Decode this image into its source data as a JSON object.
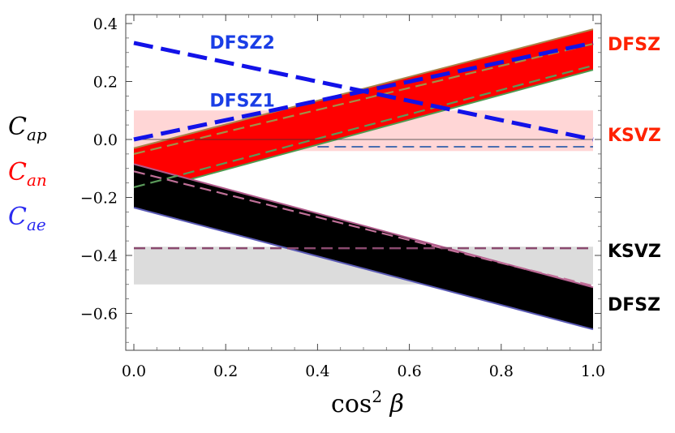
{
  "chart_data": {
    "type": "line",
    "xlabel_base": "cos",
    "xlabel_power": "2",
    "xlabel_symbol": "β",
    "xlim": [
      0,
      1
    ],
    "ylim": [
      -0.72,
      0.43
    ],
    "x_ticks": [
      0,
      0.2,
      0.4,
      0.6,
      0.8,
      1.0
    ],
    "x_tick_labels": [
      "0.0",
      "0.2",
      "0.4",
      "0.6",
      "0.8",
      "1.0"
    ],
    "y_ticks": [
      0.4,
      0.2,
      0.0,
      -0.2,
      -0.4,
      -0.6
    ],
    "y_tick_labels": [
      "0.4",
      "0.2",
      "0.0",
      "−0.2",
      "−0.4",
      "−0.6"
    ],
    "y_labels": [
      {
        "main": "C",
        "sub": "ap",
        "color": "#000000"
      },
      {
        "main": "C",
        "sub": "an",
        "color": "#ff0000"
      },
      {
        "main": "C",
        "sub": "ae",
        "color": "#2a2af0"
      }
    ],
    "bands": [
      {
        "name": "KSVZ Can band",
        "y_low": -0.04,
        "y_high": 0.1,
        "fill": "#ffd6d6"
      },
      {
        "name": "KSVZ Cap band",
        "y_low": -0.5,
        "y_high": -0.37,
        "fill": "#dcdcdc"
      }
    ],
    "regions": [
      {
        "name": "DFSZ Can",
        "fill": "#ff0000",
        "upper": [
          [
            0,
            -0.03
          ],
          [
            1,
            0.38
          ]
        ],
        "lower": [
          [
            0,
            -0.19
          ],
          [
            1,
            0.24
          ]
        ],
        "upper_edge_color": "#a8864a",
        "lower_edge_color": "#4f9a4f"
      },
      {
        "name": "DFSZ Cap",
        "fill": "#000000",
        "upper": [
          [
            0,
            -0.085
          ],
          [
            1,
            -0.51
          ]
        ],
        "lower": [
          [
            0,
            -0.235
          ],
          [
            1,
            -0.655
          ]
        ],
        "upper_edge_color": "#b05a8a",
        "lower_edge_color": "#5a5ab4"
      }
    ],
    "series": [
      {
        "name": "Can dashed (olive)",
        "style": "dashed",
        "color": "#a09048",
        "width": 2.2,
        "x": [
          0,
          1
        ],
        "y": [
          -0.05,
          0.33
        ]
      },
      {
        "name": "Can dashed (green)",
        "style": "dashed",
        "color": "#5a9a5a",
        "width": 2.2,
        "x": [
          0,
          1
        ],
        "y": [
          -0.165,
          0.255
        ]
      },
      {
        "name": "Cap dashed (mauve)",
        "style": "dashed",
        "color": "#c07098",
        "width": 2.2,
        "x": [
          0,
          1
        ],
        "y": [
          -0.11,
          -0.505
        ]
      },
      {
        "name": "KSVZ Cap dashed",
        "style": "dashed",
        "color": "#8b4a6f",
        "width": 2.5,
        "x": [
          0,
          1
        ],
        "y": [
          -0.375,
          -0.375
        ]
      },
      {
        "name": "KSVZ Cae dashed",
        "style": "dashed",
        "color": "#4a6eb0",
        "width": 2,
        "x": [
          0.4,
          1
        ],
        "y": [
          -0.025,
          -0.025
        ]
      },
      {
        "name": "zero line",
        "style": "solid",
        "color": "#333333",
        "width": 0.8,
        "x": [
          0,
          1
        ],
        "y": [
          0,
          0
        ]
      },
      {
        "name": "DFSZ2",
        "style": "dashed-thick",
        "color": "#1212e8",
        "width": 5,
        "x": [
          0,
          1
        ],
        "y": [
          0.333,
          0.0
        ]
      },
      {
        "name": "DFSZ1",
        "style": "dashed-thick",
        "color": "#1212e8",
        "width": 5,
        "x": [
          0,
          1
        ],
        "y": [
          0.0,
          0.333
        ]
      }
    ],
    "annotations": [
      {
        "text": "DFSZ2",
        "color": "#1a3ee6",
        "anchor": "plot",
        "x": 0.165,
        "y": 0.335
      },
      {
        "text": "DFSZ1",
        "color": "#1a3ee6",
        "anchor": "plot",
        "x": 0.165,
        "y": 0.135
      },
      {
        "text": "DFSZ",
        "color": "#ff2200",
        "anchor": "right",
        "y": 0.333
      },
      {
        "text": "KSVZ",
        "color": "#ff2200",
        "anchor": "right",
        "y": 0.02
      },
      {
        "text": "KSVZ",
        "color": "#000000",
        "anchor": "right",
        "y": -0.38
      },
      {
        "text": "DFSZ",
        "color": "#000000",
        "anchor": "right",
        "y": -0.565
      }
    ]
  }
}
